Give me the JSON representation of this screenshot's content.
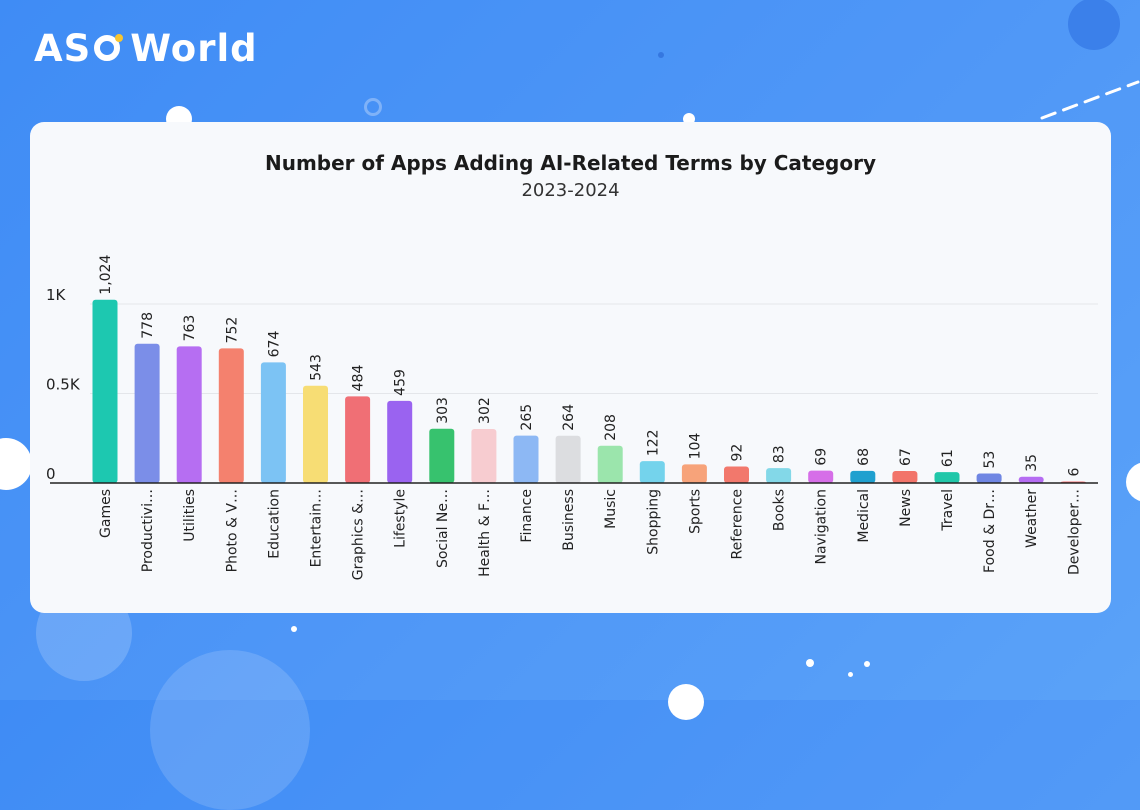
{
  "brand": {
    "logo_text_a": "AS",
    "logo_text_b": "World",
    "accent_color": "#f7c531"
  },
  "chart_data": {
    "type": "bar",
    "title": "Number of Apps Adding AI-Related Terms by Category",
    "subtitle": "2023-2024",
    "xlabel": "",
    "ylabel": "",
    "ylim": [
      0,
      1000
    ],
    "grid": true,
    "legend": "none",
    "y_ticks": [
      {
        "value": 0,
        "label": "0"
      },
      {
        "value": 500,
        "label": "0.5K"
      },
      {
        "value": 1000,
        "label": "1K"
      }
    ],
    "categories": [
      "Games",
      "Productivi…",
      "Utilities",
      "Photo & V…",
      "Education",
      "Entertain…",
      "Graphics &…",
      "Lifestyle",
      "Social Ne…",
      "Health & F…",
      "Finance",
      "Business",
      "Music",
      "Shopping",
      "Sports",
      "Reference",
      "Books",
      "Navigation",
      "Medical",
      "News",
      "Travel",
      "Food & Dr…",
      "Weather",
      "Developer…"
    ],
    "values": [
      1024,
      778,
      763,
      752,
      674,
      543,
      484,
      459,
      303,
      302,
      265,
      264,
      208,
      122,
      104,
      92,
      83,
      69,
      68,
      67,
      61,
      53,
      35,
      6
    ],
    "value_labels": [
      "1,024",
      "778",
      "763",
      "752",
      "674",
      "543",
      "484",
      "459",
      "303",
      "302",
      "265",
      "264",
      "208",
      "122",
      "104",
      "92",
      "83",
      "69",
      "68",
      "67",
      "61",
      "53",
      "35",
      "6"
    ],
    "colors": [
      "#1dc8b0",
      "#7b8ee8",
      "#b66ef2",
      "#f4816e",
      "#7cc3f4",
      "#f7dd74",
      "#f06f75",
      "#9a63f0",
      "#37c26e",
      "#f7ccd0",
      "#8db8f4",
      "#dcdde0",
      "#9be5ac",
      "#74d3ec",
      "#f7a37a",
      "#f2786c",
      "#83d8e8",
      "#d66ee8",
      "#1fa0cf",
      "#f2746a",
      "#20c7a9",
      "#6f86e3",
      "#b56cf2",
      "#f06c6c"
    ]
  }
}
